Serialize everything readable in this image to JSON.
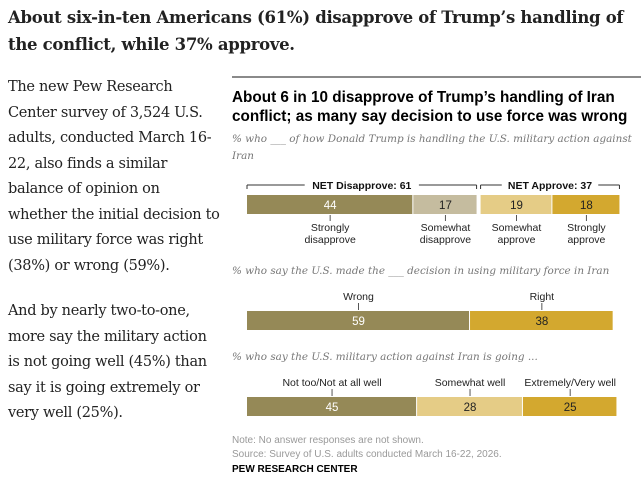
{
  "headline": "About six-in-ten Americans (61%) disapprove of Trump’s handling of the conflict, while 37% approve.",
  "body_paragraphs": [
    "The new Pew Research Center survey of 3,524 U.S. adults, conducted March 16-22, also finds a similar balance of opinion on whether the initial decision to use military force was right (38%) or wrong (59%).",
    "And by nearly two-to-one, more say the military action is not going well (45%) than say it is going extremely or very well (25%)."
  ],
  "colors": {
    "dark_olive": "#958957",
    "light_tan": "#c5bc9f",
    "light_gold": "#e5cc86",
    "gold": "#d3a82f"
  },
  "chart_data": {
    "type": "bar",
    "orientation": "horizontal-stacked",
    "title": "About 6 in 10 disapprove of Trump’s handling of Iran conflict; as many say decision to use force was wrong",
    "panels": [
      {
        "subtitle": "% who ___ of how Donald Trump is handling the U.S. military action against Iran",
        "groups": [
          {
            "label": "NET Disapprove: 61",
            "net": 61
          },
          {
            "label": "NET Approve: 37",
            "net": 37
          }
        ],
        "segments": [
          {
            "label": "Strongly disapprove",
            "value": 44,
            "color": "#958957",
            "group": 0
          },
          {
            "label": "Somewhat disapprove",
            "value": 17,
            "color": "#c5bc9f",
            "group": 0
          },
          {
            "label": "Somewhat approve",
            "value": 19,
            "color": "#e5cc86",
            "group": 1
          },
          {
            "label": "Strongly approve",
            "value": 18,
            "color": "#d3a82f",
            "group": 1
          }
        ]
      },
      {
        "subtitle": "% who say the U.S. made the ___ decision in using military force in Iran",
        "segments": [
          {
            "label": "Wrong",
            "value": 59,
            "color": "#958957"
          },
          {
            "label": "Right",
            "value": 38,
            "color": "#d3a82f"
          }
        ]
      },
      {
        "subtitle": "% who say the U.S. military action against Iran is going ...",
        "segments": [
          {
            "label": "Not too/Not at all well",
            "value": 45,
            "color": "#958957"
          },
          {
            "label": "Somewhat well",
            "value": 28,
            "color": "#e5cc86"
          },
          {
            "label": "Extremely/Very well",
            "value": 25,
            "color": "#d3a82f"
          }
        ]
      }
    ],
    "note": "Note: No answer responses are not shown.",
    "source": "Source: Survey of U.S. adults conducted March 16-22, 2026.",
    "brand": "PEW RESEARCH CENTER"
  }
}
